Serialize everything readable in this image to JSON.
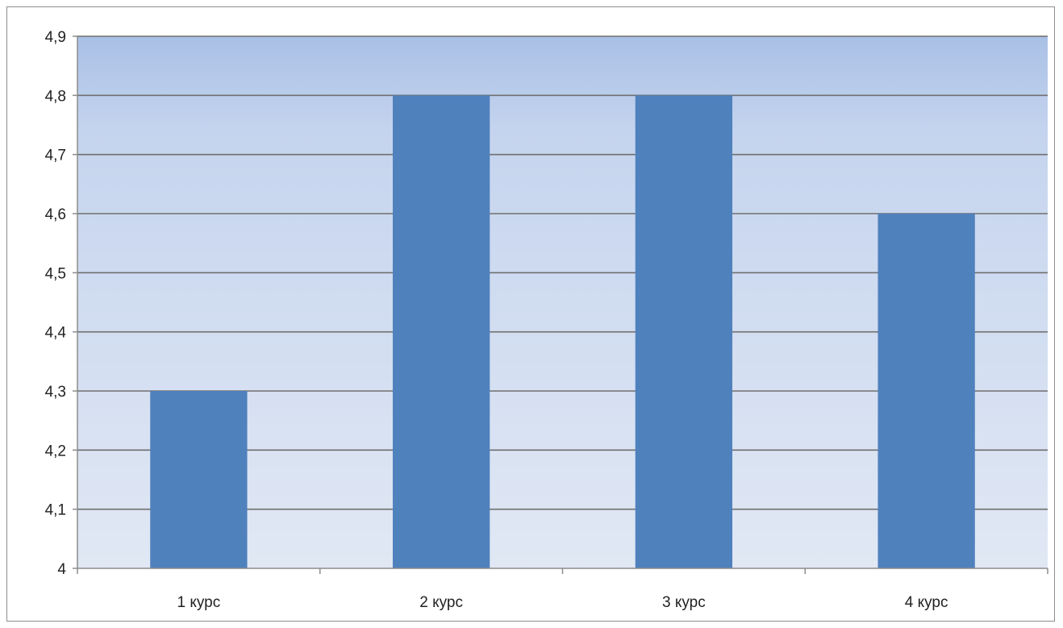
{
  "chart_data": {
    "type": "bar",
    "categories": [
      "1 курс",
      "2 курс",
      "3 курс",
      "4 курс"
    ],
    "values": [
      4.3,
      4.8,
      4.8,
      4.6
    ],
    "title": "",
    "xlabel": "",
    "ylabel": "",
    "ylim": [
      4,
      4.9
    ],
    "yticks": [
      "4",
      "4,1",
      "4,2",
      "4,3",
      "4,4",
      "4,5",
      "4,6",
      "4,7",
      "4,8",
      "4,9"
    ],
    "grid": true,
    "legend": "none",
    "colors": {
      "bar": "#4f81bd",
      "plot_top": "#a9c0e6",
      "plot_bottom": "#e1e8f4",
      "gridline": "#6f6f6f",
      "axis": "#8c8c8c"
    }
  }
}
